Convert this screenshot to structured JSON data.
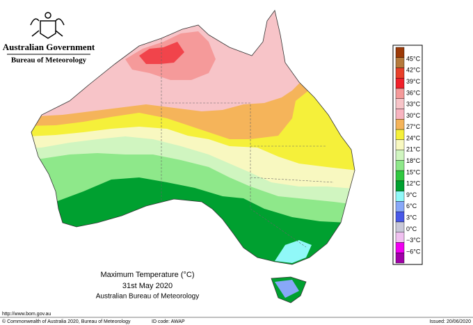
{
  "header": {
    "government": "Australian Government",
    "agency": "Bureau of Meteorology"
  },
  "legend": {
    "colors": [
      "#9c3a08",
      "#b57a3c",
      "#e8402a",
      "#f0202a",
      "#f59a9a",
      "#f7c4c8",
      "#f8b4c0",
      "#f5b45a",
      "#f5f03a",
      "#f8f8c0",
      "#d0f5c0",
      "#8ee88a",
      "#30c840",
      "#00a030",
      "#90f8f8",
      "#88a8f8",
      "#4858e8",
      "#c8c8d8",
      "#f0c0f0",
      "#f000f0",
      "#a000a8"
    ],
    "labels": [
      "45°C",
      "42°C",
      "39°C",
      "36°C",
      "33°C",
      "30°C",
      "27°C",
      "24°C",
      "21°C",
      "18°C",
      "15°C",
      "12°C",
      "9°C",
      "6°C",
      "3°C",
      "0°C",
      "−3°C",
      "−6°C"
    ]
  },
  "caption": {
    "title": "Maximum Temperature (°C)",
    "date": "31st May 2020",
    "source": "Australian Bureau of Meteorology"
  },
  "footer": {
    "url": "http://www.bom.gov.au",
    "copyright": "© Commonwealth of Australia 2020, Bureau of Meteorology",
    "id_code": "ID code: AWAP",
    "issued": "Issued: 20/06/2020"
  }
}
